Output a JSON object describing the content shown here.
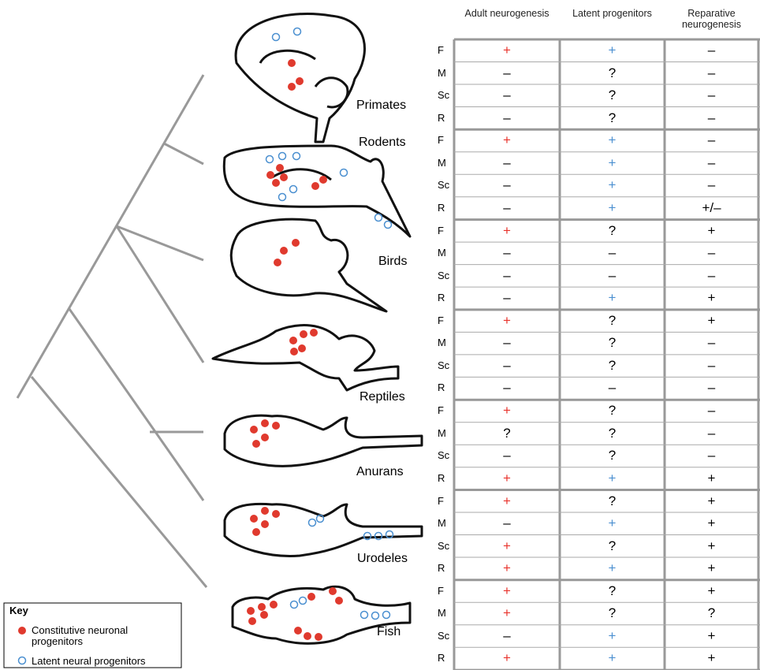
{
  "table": {
    "headers": [
      "Adult neurogenesis",
      "Latent progenitors",
      "Reparative neurogenesis"
    ],
    "plus_colors": [
      "#e8322b",
      "#4a8fd0",
      "#000000"
    ],
    "groups": [
      {
        "name": "Primates",
        "rows": [
          {
            "region": "F",
            "values": [
              "+",
              "+",
              "–"
            ]
          },
          {
            "region": "M",
            "values": [
              "–",
              "?",
              "–"
            ]
          },
          {
            "region": "Sc",
            "values": [
              "–",
              "?",
              "–"
            ]
          },
          {
            "region": "R",
            "values": [
              "–",
              "?",
              "–"
            ]
          }
        ]
      },
      {
        "name": "Rodents",
        "rows": [
          {
            "region": "F",
            "values": [
              "+",
              "+",
              "–"
            ]
          },
          {
            "region": "M",
            "values": [
              "–",
              "+",
              "–"
            ]
          },
          {
            "region": "Sc",
            "values": [
              "–",
              "+",
              "–"
            ]
          },
          {
            "region": "R",
            "values": [
              "–",
              "+",
              "+/–"
            ]
          }
        ]
      },
      {
        "name": "Birds",
        "rows": [
          {
            "region": "F",
            "values": [
              "+",
              "?",
              "+"
            ]
          },
          {
            "region": "M",
            "values": [
              "–",
              "–",
              "–"
            ]
          },
          {
            "region": "Sc",
            "values": [
              "–",
              "–",
              "–"
            ]
          },
          {
            "region": "R",
            "values": [
              "–",
              "+",
              "+"
            ]
          }
        ]
      },
      {
        "name": "Reptiles",
        "rows": [
          {
            "region": "F",
            "values": [
              "+",
              "?",
              "+"
            ]
          },
          {
            "region": "M",
            "values": [
              "–",
              "?",
              "–"
            ]
          },
          {
            "region": "Sc",
            "values": [
              "–",
              "?",
              "–"
            ]
          },
          {
            "region": "R",
            "values": [
              "–",
              "–",
              "–"
            ]
          }
        ]
      },
      {
        "name": "Anurans",
        "rows": [
          {
            "region": "F",
            "values": [
              "+",
              "?",
              "–"
            ]
          },
          {
            "region": "M",
            "values": [
              "?",
              "?",
              "–"
            ]
          },
          {
            "region": "Sc",
            "values": [
              "–",
              "?",
              "–"
            ]
          },
          {
            "region": "R",
            "values": [
              "+",
              "+",
              "+"
            ]
          }
        ]
      },
      {
        "name": "Urodeles",
        "rows": [
          {
            "region": "F",
            "values": [
              "+",
              "?",
              "+"
            ]
          },
          {
            "region": "M",
            "values": [
              "–",
              "+",
              "+"
            ]
          },
          {
            "region": "Sc",
            "values": [
              "+",
              "?",
              "+"
            ]
          },
          {
            "region": "R",
            "values": [
              "+",
              "+",
              "+"
            ]
          }
        ]
      },
      {
        "name": "Fish",
        "rows": [
          {
            "region": "F",
            "values": [
              "+",
              "?",
              "+"
            ]
          },
          {
            "region": "M",
            "values": [
              "+",
              "?",
              "?"
            ]
          },
          {
            "region": "Sc",
            "values": [
              "–",
              "+",
              "+"
            ]
          },
          {
            "region": "R",
            "values": [
              "+",
              "+",
              "+"
            ]
          }
        ]
      }
    ]
  },
  "key": {
    "title": "Key",
    "items": [
      "Constitutive neuronal progenitors",
      "Latent neural progenitors"
    ]
  }
}
